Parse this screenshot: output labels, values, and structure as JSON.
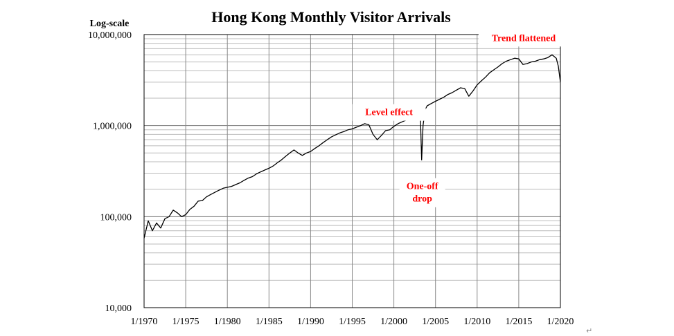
{
  "chart_data": {
    "type": "line",
    "title": "Hong Kong Monthly Visitor Arrivals",
    "ylabel": "Log-scale",
    "xlabel": "",
    "yscale": "log",
    "ylim": [
      10000,
      10000000
    ],
    "xlim": [
      "1970-01",
      "2020-01"
    ],
    "y_tick_labels": [
      "10,000",
      "100,000",
      "1,000,000",
      "10,000,000"
    ],
    "y_tick_values": [
      10000,
      100000,
      1000000,
      10000000
    ],
    "x_tick_labels": [
      "1/1970",
      "1/1975",
      "1/1980",
      "1/1985",
      "1/1990",
      "1/1995",
      "1/2000",
      "1/2005",
      "1/2010",
      "1/2015",
      "1/2020"
    ],
    "x_tick_years": [
      1970,
      1975,
      1980,
      1985,
      1990,
      1995,
      2000,
      2005,
      2010,
      2015,
      2020
    ],
    "grid": true,
    "legend": "none",
    "series_color": "#000000",
    "annotation_color": "#ff0000",
    "series": [
      {
        "x": [
          "1970-01",
          "1970-07",
          "1971-01",
          "1971-07",
          "1972-01",
          "1972-07",
          "1973-01",
          "1973-07",
          "1974-01",
          "1974-07",
          "1975-01",
          "1975-07",
          "1976-01",
          "1976-07",
          "1977-01",
          "1977-07",
          "1978-01",
          "1978-07",
          "1979-01",
          "1979-07",
          "1980-01",
          "1980-07",
          "1981-01",
          "1981-07",
          "1982-01",
          "1982-07",
          "1983-01",
          "1983-07",
          "1984-01",
          "1984-07",
          "1985-01",
          "1985-07",
          "1986-01",
          "1986-07",
          "1987-01",
          "1987-07",
          "1988-01",
          "1988-07",
          "1989-01",
          "1989-07",
          "1990-01",
          "1990-07",
          "1991-01",
          "1991-07",
          "1992-01",
          "1992-07",
          "1993-01",
          "1993-07",
          "1994-01",
          "1994-07",
          "1995-01",
          "1995-07",
          "1996-01",
          "1996-07",
          "1997-01",
          "1997-07",
          "1998-01",
          "1998-07",
          "1999-01",
          "1999-07",
          "2000-01",
          "2000-07",
          "2001-01",
          "2001-07",
          "2002-01",
          "2002-07",
          "2003-01",
          "2003-03",
          "2003-05",
          "2003-07",
          "2003-10",
          "2004-01",
          "2004-07",
          "2005-01",
          "2005-07",
          "2006-01",
          "2006-07",
          "2007-01",
          "2007-07",
          "2008-01",
          "2008-07",
          "2009-01",
          "2009-07",
          "2010-01",
          "2010-07",
          "2011-01",
          "2011-07",
          "2012-01",
          "2012-07",
          "2013-01",
          "2013-07",
          "2014-01",
          "2014-07",
          "2015-01",
          "2015-07",
          "2016-01",
          "2016-07",
          "2017-01",
          "2017-07",
          "2018-01",
          "2018-07",
          "2019-01",
          "2019-07",
          "2019-10",
          "2020-01"
        ],
        "values": [
          58000,
          90000,
          70000,
          85000,
          75000,
          95000,
          100000,
          118000,
          110000,
          100000,
          105000,
          120000,
          130000,
          148000,
          150000,
          165000,
          175000,
          185000,
          195000,
          205000,
          210000,
          215000,
          225000,
          235000,
          250000,
          265000,
          275000,
          295000,
          310000,
          325000,
          340000,
          360000,
          390000,
          420000,
          460000,
          500000,
          540000,
          500000,
          470000,
          500000,
          520000,
          560000,
          600000,
          650000,
          700000,
          750000,
          790000,
          830000,
          860000,
          900000,
          920000,
          960000,
          1000000,
          1050000,
          1020000,
          800000,
          700000,
          780000,
          880000,
          900000,
          980000,
          1050000,
          1100000,
          1150000,
          1250000,
          1400000,
          1550000,
          1400000,
          420000,
          1000000,
          1500000,
          1650000,
          1750000,
          1850000,
          1950000,
          2050000,
          2200000,
          2300000,
          2450000,
          2600000,
          2550000,
          2100000,
          2400000,
          2800000,
          3100000,
          3400000,
          3800000,
          4100000,
          4400000,
          4800000,
          5100000,
          5300000,
          5500000,
          5400000,
          4700000,
          4800000,
          5000000,
          5100000,
          5300000,
          5400000,
          5600000,
          6000000,
          5500000,
          4500000,
          3000000
        ]
      }
    ],
    "annotations": [
      {
        "text": "Level effect",
        "x": "1999-06",
        "y": 1300000
      },
      {
        "text": "One-off drop",
        "x": "2003-06",
        "y": 200000
      },
      {
        "text": "Trend flattened",
        "x": "2015-08",
        "y": 8500000
      }
    ]
  }
}
